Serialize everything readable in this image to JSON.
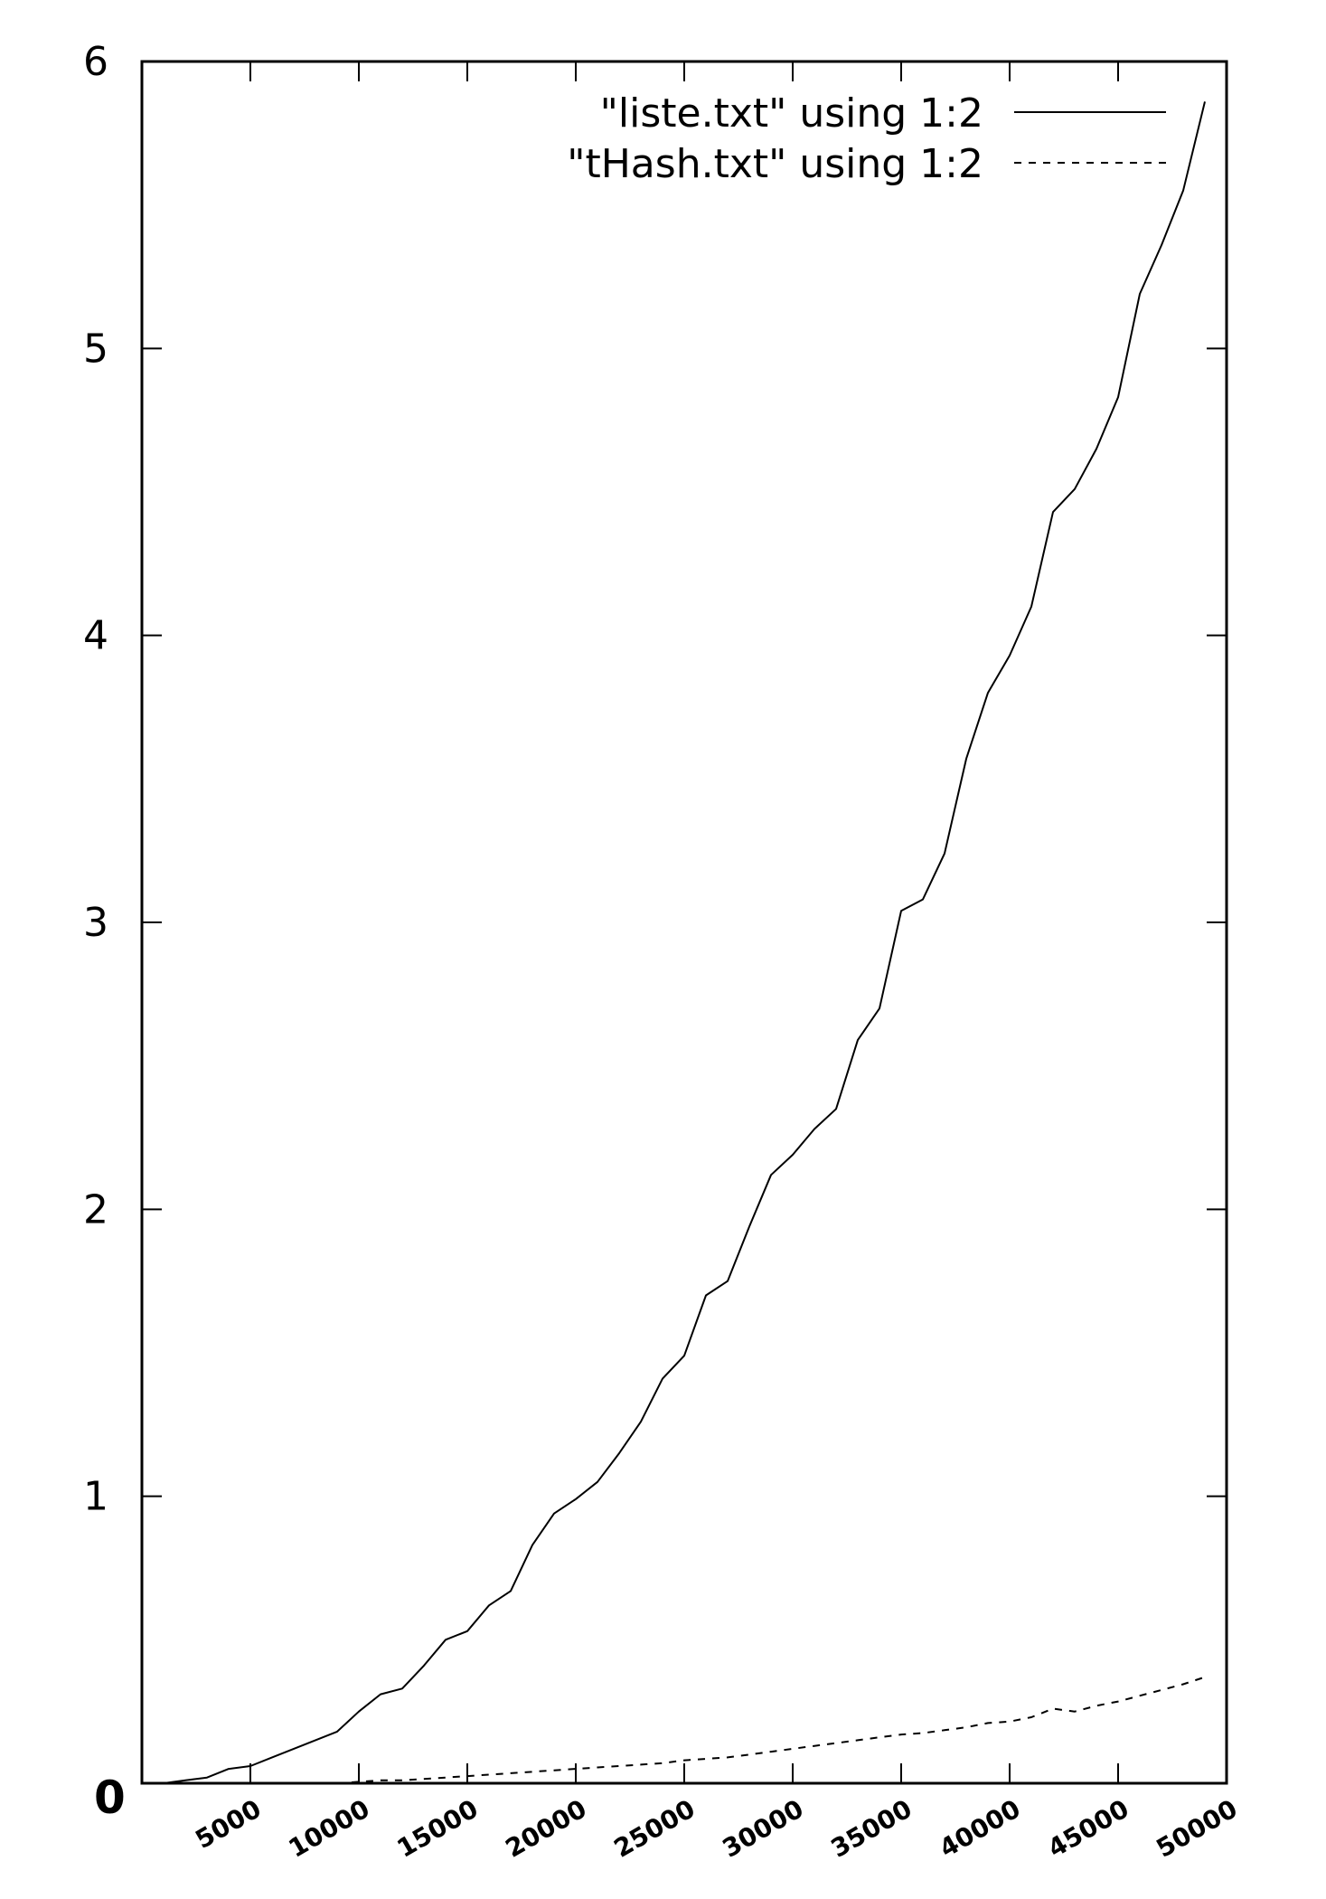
{
  "chart_data": {
    "type": "line",
    "title": "",
    "xlabel": "",
    "ylabel": "",
    "xlim": [
      0,
      50000
    ],
    "ylim": [
      0,
      6
    ],
    "x_ticks": [
      5000,
      10000,
      15000,
      20000,
      25000,
      30000,
      35000,
      40000,
      45000,
      50000
    ],
    "x_tick_labels": [
      "5000",
      "10000",
      "15000",
      "20000",
      "25000",
      "30000",
      "35000",
      "40000",
      "45000",
      "50000"
    ],
    "y_ticks": [
      1,
      2,
      3,
      4,
      5,
      6
    ],
    "y_tick_labels": [
      "1",
      "2",
      "3",
      "4",
      "5",
      "6"
    ],
    "origin_label": "0",
    "grid": false,
    "legend_position": "top-right",
    "series": [
      {
        "name": "\"liste.txt\" using 1:2",
        "style": "solid",
        "color": "#000000",
        "x": [
          1000,
          2000,
          3000,
          4000,
          5000,
          6000,
          7000,
          8000,
          9000,
          10000,
          11000,
          12000,
          13000,
          14000,
          15000,
          16000,
          17000,
          18000,
          19000,
          20000,
          21000,
          22000,
          23000,
          24000,
          25000,
          26000,
          27000,
          28000,
          29000,
          30000,
          31000,
          32000,
          33000,
          34000,
          35000,
          36000,
          37000,
          38000,
          39000,
          40000,
          41000,
          42000,
          43000,
          44000,
          45000,
          46000,
          47000,
          48000,
          49000
        ],
        "values": [
          0.0,
          0.01,
          0.02,
          0.05,
          0.06,
          0.09,
          0.12,
          0.15,
          0.18,
          0.25,
          0.31,
          0.33,
          0.41,
          0.5,
          0.53,
          0.62,
          0.67,
          0.83,
          0.94,
          0.99,
          1.05,
          1.15,
          1.26,
          1.41,
          1.49,
          1.7,
          1.75,
          1.94,
          2.12,
          2.19,
          2.28,
          2.35,
          2.59,
          2.7,
          3.04,
          3.08,
          3.24,
          3.57,
          3.8,
          3.93,
          4.1,
          4.43,
          4.51,
          4.65,
          4.83,
          5.19,
          5.36,
          5.55,
          5.86
        ]
      },
      {
        "name": "\"tHash.txt\" using 1:2",
        "style": "dashed",
        "color": "#000000",
        "x": [
          7000,
          8000,
          9000,
          10000,
          11000,
          12000,
          13000,
          14000,
          15000,
          16000,
          17000,
          18000,
          19000,
          20000,
          21000,
          22000,
          23000,
          24000,
          25000,
          26000,
          27000,
          28000,
          29000,
          30000,
          31000,
          32000,
          33000,
          34000,
          35000,
          36000,
          37000,
          38000,
          39000,
          40000,
          41000,
          42000,
          43000,
          44000,
          45000,
          46000,
          47000,
          48000,
          49000
        ],
        "values": [
          0.0,
          0.0,
          0.0,
          0.005,
          0.01,
          0.01,
          0.015,
          0.02,
          0.025,
          0.03,
          0.035,
          0.04,
          0.045,
          0.05,
          0.055,
          0.06,
          0.065,
          0.07,
          0.08,
          0.085,
          0.09,
          0.1,
          0.11,
          0.12,
          0.13,
          0.14,
          0.15,
          0.16,
          0.17,
          0.175,
          0.185,
          0.195,
          0.21,
          0.215,
          0.23,
          0.26,
          0.25,
          0.27,
          0.285,
          0.305,
          0.325,
          0.345,
          0.37
        ]
      }
    ]
  }
}
